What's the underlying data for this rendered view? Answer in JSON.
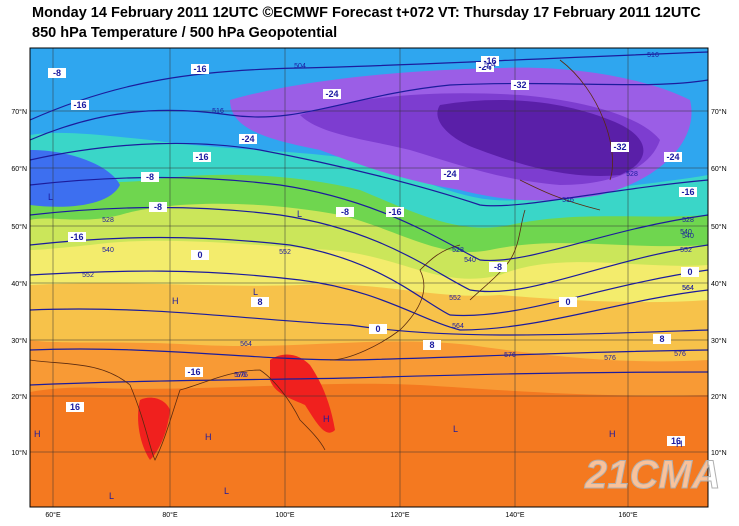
{
  "header": {
    "title": "Monday 14 February 2011 12UTC ©ECMWF Forecast t+072 VT: Thursday 17 February 2011 12UTC",
    "subtitle": "850 hPa Temperature / 500 hPa Geopotential"
  },
  "map": {
    "longitude_labels": [
      "60°E",
      "80°E",
      "100°E",
      "120°E",
      "140°E",
      "160°E"
    ],
    "latitude_labels": [
      "70°N",
      "60°N",
      "50°N",
      "40°N",
      "30°N",
      "20°N",
      "10°N"
    ],
    "temperature_labels": [
      "-8",
      "-16",
      "-16",
      "-24",
      "-16",
      "-24",
      "-32",
      "-24",
      "-16",
      "-8",
      "-8",
      "-16",
      "-8",
      "-16",
      "-24",
      "-32",
      "-24",
      "-16",
      "-16",
      "0",
      "8",
      "-8",
      "0",
      "0",
      "8",
      "8",
      "-16",
      "16",
      "16",
      "0"
    ],
    "geopotential_labels": [
      "516",
      "504",
      "528",
      "540",
      "552",
      "564",
      "576",
      "516",
      "528",
      "540",
      "552",
      "564",
      "552",
      "564",
      "576",
      "504",
      "516",
      "528",
      "540",
      "564",
      "576",
      "576",
      "576",
      "528",
      "540",
      "552"
    ],
    "pressure_centers": [
      "L",
      "L",
      "H",
      "L",
      "H",
      "H",
      "H",
      "L",
      "L",
      "H",
      "H",
      "L"
    ],
    "watermark": "21CMA"
  }
}
